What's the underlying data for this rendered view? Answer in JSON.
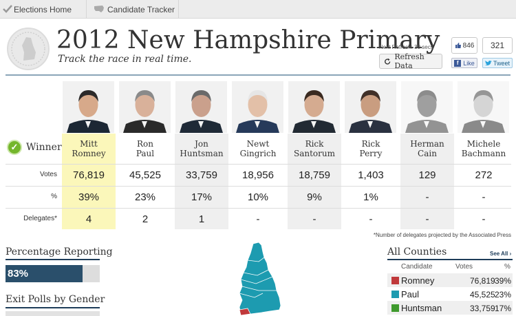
{
  "nav": {
    "tabs": [
      {
        "label": "Elections Home",
        "icon": "checkmark-icon"
      },
      {
        "label": "Candidate Tracker",
        "icon": "us-map-icon"
      }
    ]
  },
  "header": {
    "title": "2012 New Hampshire Primary",
    "subtitle": "Track the race in real time.",
    "refresh_label": "Next Refresh: 30 secs",
    "refresh_button": "Refresh Data",
    "fb_count": "846",
    "fb_like": "Like",
    "tw_count": "321",
    "tw_button": "Tweet"
  },
  "results": {
    "winner_label": "Winner",
    "row_labels": {
      "votes": "Votes",
      "pct": "%",
      "delegates": "Delegates*"
    },
    "candidates": [
      {
        "first": "Mitt",
        "last": "Romney",
        "votes": "76,819",
        "pct": "39%",
        "delegates": "4",
        "winner": true,
        "active": true
      },
      {
        "first": "Ron",
        "last": "Paul",
        "votes": "45,525",
        "pct": "23%",
        "delegates": "2",
        "winner": false,
        "active": true
      },
      {
        "first": "Jon",
        "last": "Huntsman",
        "votes": "33,759",
        "pct": "17%",
        "delegates": "1",
        "winner": false,
        "active": true
      },
      {
        "first": "Newt",
        "last": "Gingrich",
        "votes": "18,956",
        "pct": "10%",
        "delegates": "-",
        "winner": false,
        "active": true
      },
      {
        "first": "Rick",
        "last": "Santorum",
        "votes": "18,759",
        "pct": "9%",
        "delegates": "-",
        "winner": false,
        "active": true
      },
      {
        "first": "Rick",
        "last": "Perry",
        "votes": "1,403",
        "pct": "1%",
        "delegates": "-",
        "winner": false,
        "active": true
      },
      {
        "first": "Herman",
        "last": "Cain",
        "votes": "129",
        "pct": "-",
        "delegates": "-",
        "winner": false,
        "active": false
      },
      {
        "first": "Michele",
        "last": "Bachmann",
        "votes": "272",
        "pct": "-",
        "delegates": "-",
        "winner": false,
        "active": false
      }
    ],
    "footnote": "*Number of delegates projected by the Associated Press"
  },
  "reporting": {
    "title": "Percentage Reporting",
    "value": "83%",
    "fraction": 0.83
  },
  "exit_polls": {
    "title": "Exit Polls by Gender"
  },
  "counties": {
    "title": "All Counties",
    "see_all": "See All ›",
    "headers": {
      "candidate": "Candidate",
      "votes": "Votes",
      "pct": "%"
    },
    "rows": [
      {
        "name": "Romney",
        "votes": "76,819",
        "pct": "39%",
        "color": "#c0393b"
      },
      {
        "name": "Paul",
        "votes": "45,525",
        "pct": "23%",
        "color": "#1d9bb0"
      },
      {
        "name": "Huntsman",
        "votes": "33,759",
        "pct": "17%",
        "color": "#3f9a2e"
      }
    ]
  },
  "colors": {
    "winner_highlight": "#fbf7ba",
    "paul_map": "#1d9bb0",
    "romney_map": "#c0393b",
    "accent_navy": "#1d3c59"
  }
}
